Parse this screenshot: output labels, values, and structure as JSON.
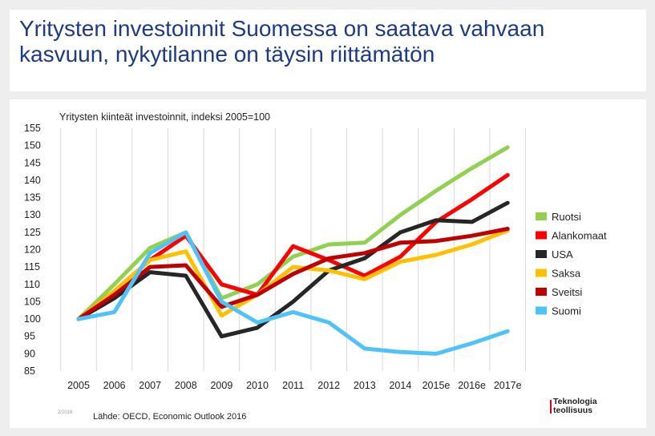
{
  "slide": {
    "title": "Yritysten investoinnit Suomessa on saatava vahvaan kasvuun, nykytilanne on täysin riittämätön",
    "source": "Lähde: OECD, Economic Outlook 2016",
    "page_number": "2/2016",
    "logo_line1": "Teknologia",
    "logo_line2": "teollisuus"
  },
  "chart_data": {
    "type": "line",
    "title": "Yritysten kiinteät investoinnit, indeksi 2005=100",
    "xlabel": "",
    "ylabel": "",
    "categories": [
      "2005",
      "2006",
      "2007",
      "2008",
      "2009",
      "2010",
      "2011",
      "2012",
      "2013",
      "2014",
      "2015e",
      "2016e",
      "2017e"
    ],
    "ylim": [
      85,
      155
    ],
    "yticks": [
      85,
      90,
      95,
      100,
      105,
      110,
      115,
      120,
      125,
      130,
      135,
      140,
      145,
      150,
      155
    ],
    "grid": "vertical",
    "legend_position": "right",
    "series": [
      {
        "name": "Ruotsi",
        "color": "#92d050",
        "values": [
          100,
          110,
          120.5,
          125,
          106,
          110,
          118,
          121.5,
          122,
          130,
          137,
          143.5,
          149.5
        ]
      },
      {
        "name": "Alankomaat",
        "color": "#ff0000",
        "values": [
          100,
          108,
          117,
          124,
          110,
          107,
          121,
          117,
          112.5,
          118,
          128,
          134.5,
          141.5
        ]
      },
      {
        "name": "USA",
        "color": "#262626",
        "values": [
          100,
          106,
          113.5,
          112.5,
          95,
          97.5,
          105,
          114,
          117.5,
          125,
          128.5,
          128,
          133.5
        ]
      },
      {
        "name": "Saksa",
        "color": "#ffc000",
        "values": [
          100,
          108,
          117,
          119.5,
          101,
          107,
          115,
          114,
          111.5,
          116.5,
          118.5,
          121.5,
          125.5
        ]
      },
      {
        "name": "Sveitsi",
        "color": "#c00000",
        "values": [
          100,
          107,
          115,
          115.5,
          103.5,
          107,
          113,
          117.5,
          119,
          122,
          122.5,
          124,
          126
        ]
      },
      {
        "name": "Suomi",
        "color": "#4fc3f7",
        "values": [
          100,
          102,
          119,
          125,
          105,
          99,
          102,
          99,
          91.5,
          90.5,
          90,
          93,
          96.5
        ]
      }
    ]
  }
}
